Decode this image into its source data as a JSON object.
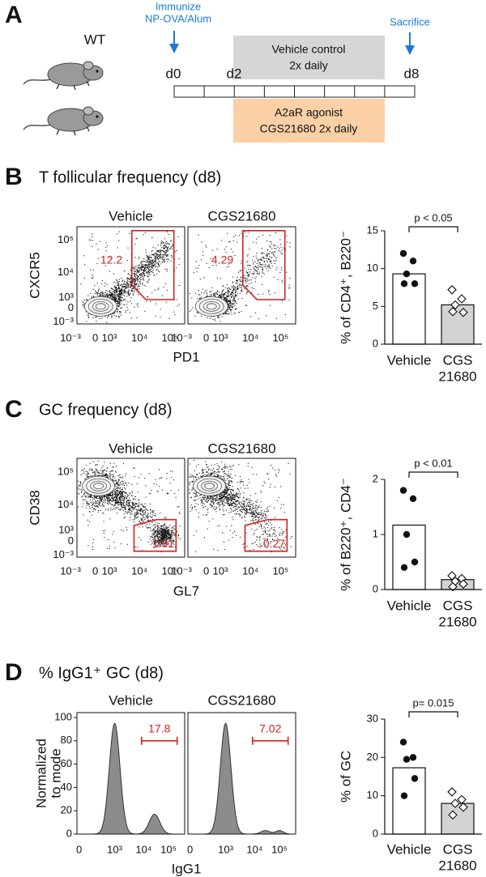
{
  "panel_a": {
    "label": "A",
    "strain": "WT",
    "immunize": [
      "Immunize",
      "NP-OVA/Alum"
    ],
    "sacrifice": "Sacrifice",
    "days": [
      "d0",
      "d2",
      "d8"
    ],
    "vehicle_box": [
      "Vehicle control",
      "2x daily"
    ],
    "agonist_box": [
      "A2aR agonist",
      "CGS21680 2x daily"
    ]
  },
  "panels": [
    {
      "label": "B",
      "title": "T follicular frequency (d8)",
      "flow": {
        "type": "dot-plot",
        "conditions": [
          "Vehicle",
          "CGS21680"
        ],
        "gate_values": [
          12.2,
          4.29
        ],
        "x_label": "PD1",
        "y_label": [
          "CXCR5"
        ],
        "x_ticks": [
          "10⁻³",
          "0",
          "10³",
          "10⁴",
          "10⁵"
        ],
        "y_ticks": [
          "10⁻³",
          "0",
          "10³",
          "10⁴",
          "10⁵"
        ]
      },
      "bar": {
        "type": "bar",
        "y_label": "% of CD4⁺, B220⁻",
        "category_lines": [
          [
            "Vehicle"
          ],
          [
            "CGS",
            "21680"
          ]
        ],
        "values": [
          9.3,
          5.2
        ],
        "points": [
          [
            12.0,
            11.0,
            9.3,
            8.0,
            8.0
          ],
          [
            7.2,
            6.0,
            5.2,
            4.2,
            4.3
          ]
        ],
        "ylim": [
          0,
          15
        ],
        "yticks": [
          0,
          5,
          10,
          15
        ],
        "p_value": "p < 0.05"
      }
    },
    {
      "label": "C",
      "title": "GC frequency (d8)",
      "flow": {
        "type": "dot-plot",
        "conditions": [
          "Vehicle",
          "CGS21680"
        ],
        "gate_values": [
          1.61,
          0.27
        ],
        "x_label": "GL7",
        "y_label": [
          "CD38"
        ],
        "x_ticks": [
          "10⁻³",
          "0",
          "10³",
          "10⁴",
          "10⁵"
        ],
        "y_ticks": [
          "10⁻³",
          "0",
          "10³",
          "10⁴",
          "10⁵"
        ]
      },
      "bar": {
        "type": "bar",
        "y_label": "% of B220⁺, CD4⁻",
        "category_lines": [
          [
            "Vehicle"
          ],
          [
            "CGS",
            "21680"
          ]
        ],
        "values": [
          1.17,
          0.18
        ],
        "points": [
          [
            1.8,
            1.65,
            1.0,
            0.5,
            0.4
          ],
          [
            0.25,
            0.2,
            0.15,
            0.1,
            0.05
          ]
        ],
        "ylim": [
          0,
          2
        ],
        "yticks": [
          0,
          1,
          2
        ],
        "p_value": "p < 0.01"
      }
    },
    {
      "label": "D",
      "title": "% IgG1⁺ GC (d8)",
      "flow": {
        "type": "histogram",
        "conditions": [
          "Vehicle",
          "CGS21680"
        ],
        "gate_values": [
          17.8,
          7.02
        ],
        "x_label": "IgG1",
        "y_label": [
          "Normalized",
          "to mode"
        ],
        "x_ticks": [
          "0",
          "10³",
          "10⁴",
          "10⁵"
        ],
        "ylim": [
          0,
          100
        ],
        "y_ticks": [
          0,
          20,
          40,
          60,
          80,
          100
        ]
      },
      "bar": {
        "type": "bar",
        "y_label": "% of GC",
        "category_lines": [
          [
            "Vehicle"
          ],
          [
            "CGS",
            "21680"
          ]
        ],
        "values": [
          17.3,
          8.0
        ],
        "points": [
          [
            24,
            20,
            19.5,
            14.5,
            10
          ],
          [
            11,
            9,
            8,
            7,
            5
          ]
        ],
        "ylim": [
          0,
          30
        ],
        "yticks": [
          0,
          10,
          20,
          30
        ],
        "p_value": "p= 0.015"
      }
    }
  ]
}
